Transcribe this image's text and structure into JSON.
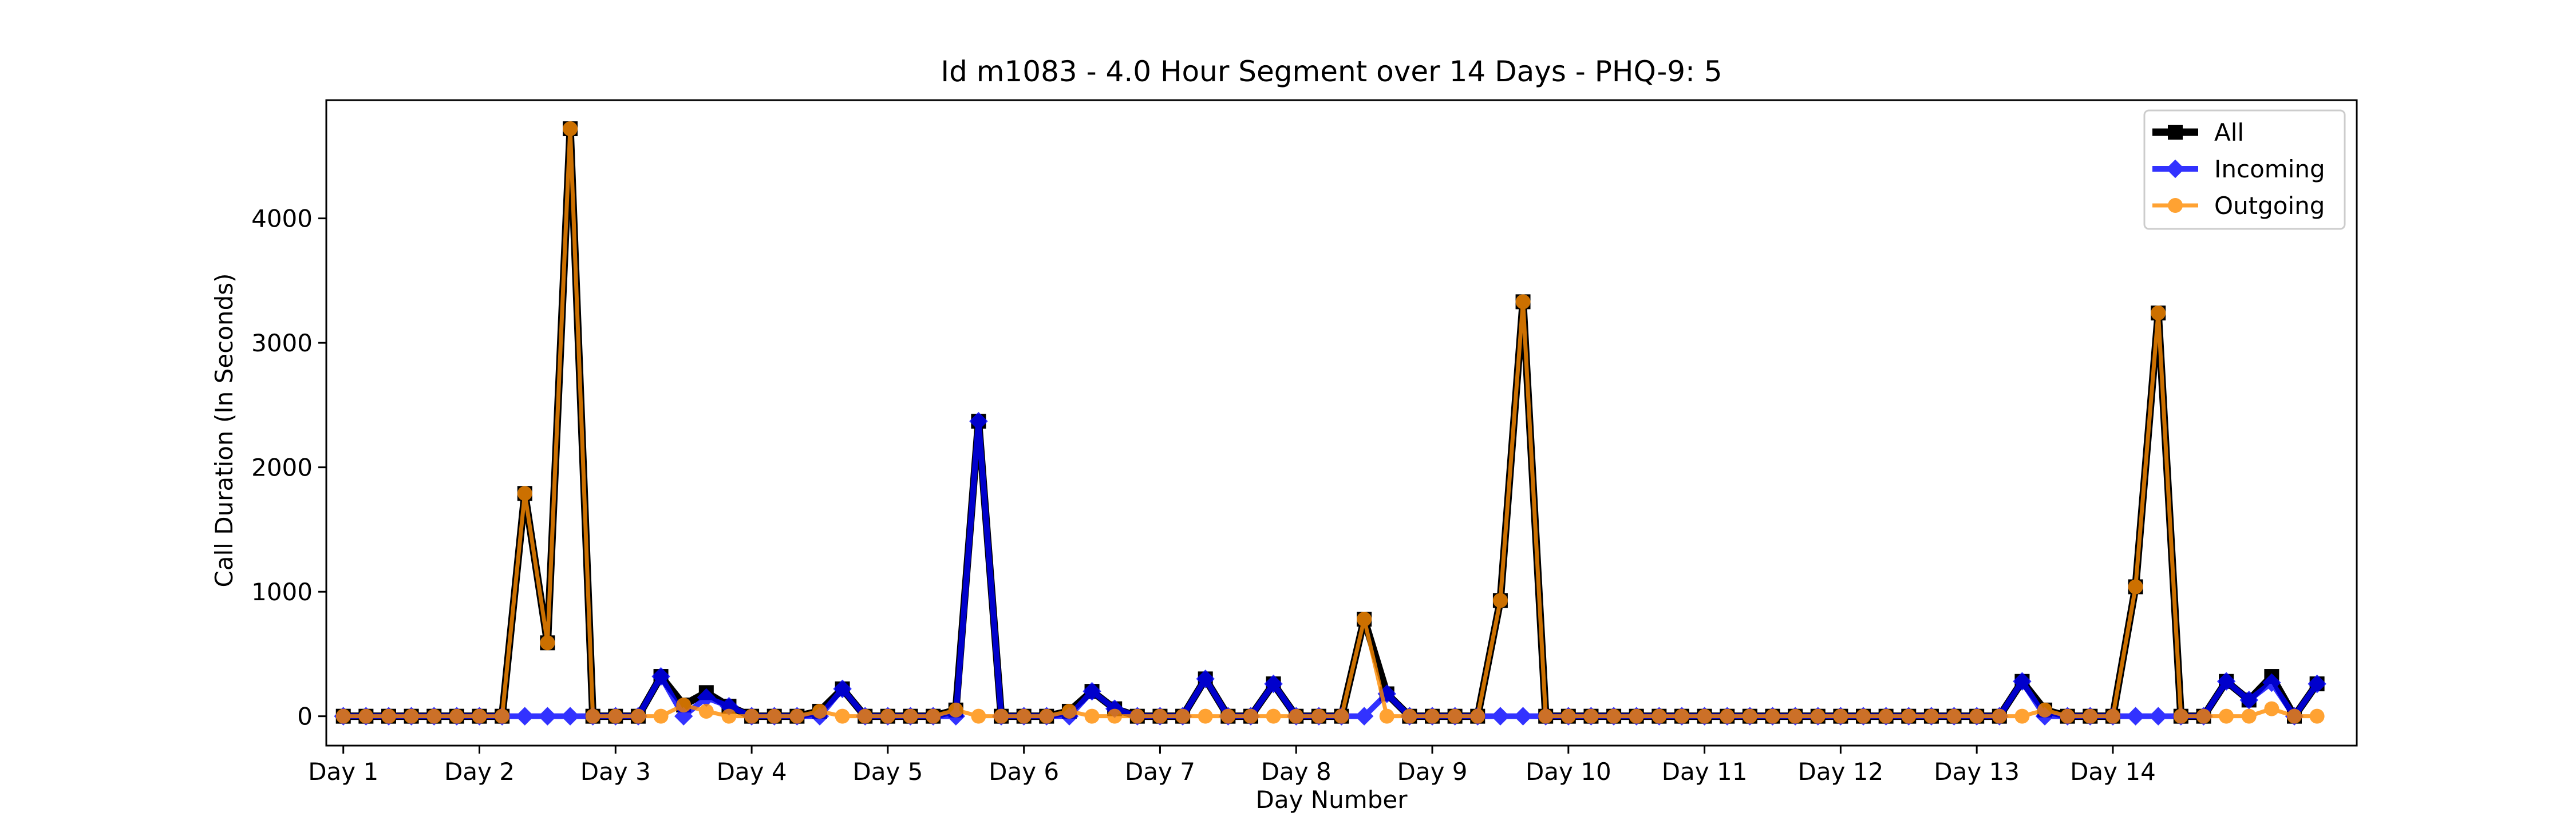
{
  "chart_data": {
    "type": "line",
    "title": "Id m1083 - 4.0 Hour Segment over 14 Days - PHQ-9: 5",
    "xlabel": "Day Number",
    "ylabel": "Call Duration (In Seconds)",
    "x_tick_labels": [
      "Day 1",
      "Day 2",
      "Day 3",
      "Day 4",
      "Day 5",
      "Day 6",
      "Day 7",
      "Day 8",
      "Day 9",
      "Day 10",
      "Day 11",
      "Day 12",
      "Day 13",
      "Day 14"
    ],
    "y_ticks": [
      0,
      1000,
      2000,
      3000,
      4000
    ],
    "xlim": [
      -0.75,
      88.75
    ],
    "ylim": [
      -236,
      4950
    ],
    "grid": false,
    "legend_position": "top-right",
    "points_per_day": 6,
    "series": [
      {
        "name": "All",
        "color": "#000000",
        "marker": "square",
        "values": [
          0,
          0,
          0,
          0,
          0,
          0,
          0,
          0,
          1790,
          590,
          4720,
          0,
          0,
          0,
          320,
          90,
          190,
          80,
          0,
          0,
          0,
          40,
          220,
          0,
          0,
          0,
          0,
          50,
          2370,
          0,
          0,
          0,
          40,
          200,
          60,
          0,
          0,
          0,
          300,
          0,
          0,
          260,
          0,
          0,
          0,
          780,
          180,
          0,
          0,
          0,
          0,
          930,
          3330,
          0,
          0,
          0,
          0,
          0,
          0,
          0,
          0,
          0,
          0,
          0,
          0,
          0,
          0,
          0,
          0,
          0,
          0,
          0,
          0,
          0,
          280,
          50,
          0,
          0,
          0,
          1040,
          3240,
          0,
          0,
          280,
          130,
          320,
          0,
          260
        ]
      },
      {
        "name": "Incoming",
        "color": "#0000ff",
        "marker": "diamond",
        "values": [
          0,
          0,
          0,
          0,
          0,
          0,
          0,
          0,
          0,
          0,
          0,
          0,
          0,
          0,
          320,
          0,
          150,
          80,
          0,
          0,
          0,
          0,
          220,
          0,
          0,
          0,
          0,
          0,
          2370,
          0,
          0,
          0,
          0,
          200,
          60,
          0,
          0,
          0,
          300,
          0,
          0,
          260,
          0,
          0,
          0,
          0,
          180,
          0,
          0,
          0,
          0,
          0,
          0,
          0,
          0,
          0,
          0,
          0,
          0,
          0,
          0,
          0,
          0,
          0,
          0,
          0,
          0,
          0,
          0,
          0,
          0,
          0,
          0,
          0,
          280,
          0,
          0,
          0,
          0,
          0,
          0,
          0,
          0,
          280,
          130,
          270,
          0,
          260
        ]
      },
      {
        "name": "Outgoing",
        "color": "#ff8c00",
        "marker": "circle",
        "values": [
          0,
          0,
          0,
          0,
          0,
          0,
          0,
          0,
          1790,
          590,
          4720,
          0,
          0,
          0,
          0,
          90,
          40,
          0,
          0,
          0,
          0,
          40,
          0,
          0,
          0,
          0,
          0,
          50,
          0,
          0,
          0,
          0,
          40,
          0,
          0,
          0,
          0,
          0,
          0,
          0,
          0,
          0,
          0,
          0,
          0,
          780,
          0,
          0,
          0,
          0,
          0,
          930,
          3330,
          0,
          0,
          0,
          0,
          0,
          0,
          0,
          0,
          0,
          0,
          0,
          0,
          0,
          0,
          0,
          0,
          0,
          0,
          0,
          0,
          0,
          0,
          50,
          0,
          0,
          0,
          1040,
          3240,
          0,
          0,
          0,
          0,
          60,
          0,
          0
        ]
      }
    ]
  }
}
